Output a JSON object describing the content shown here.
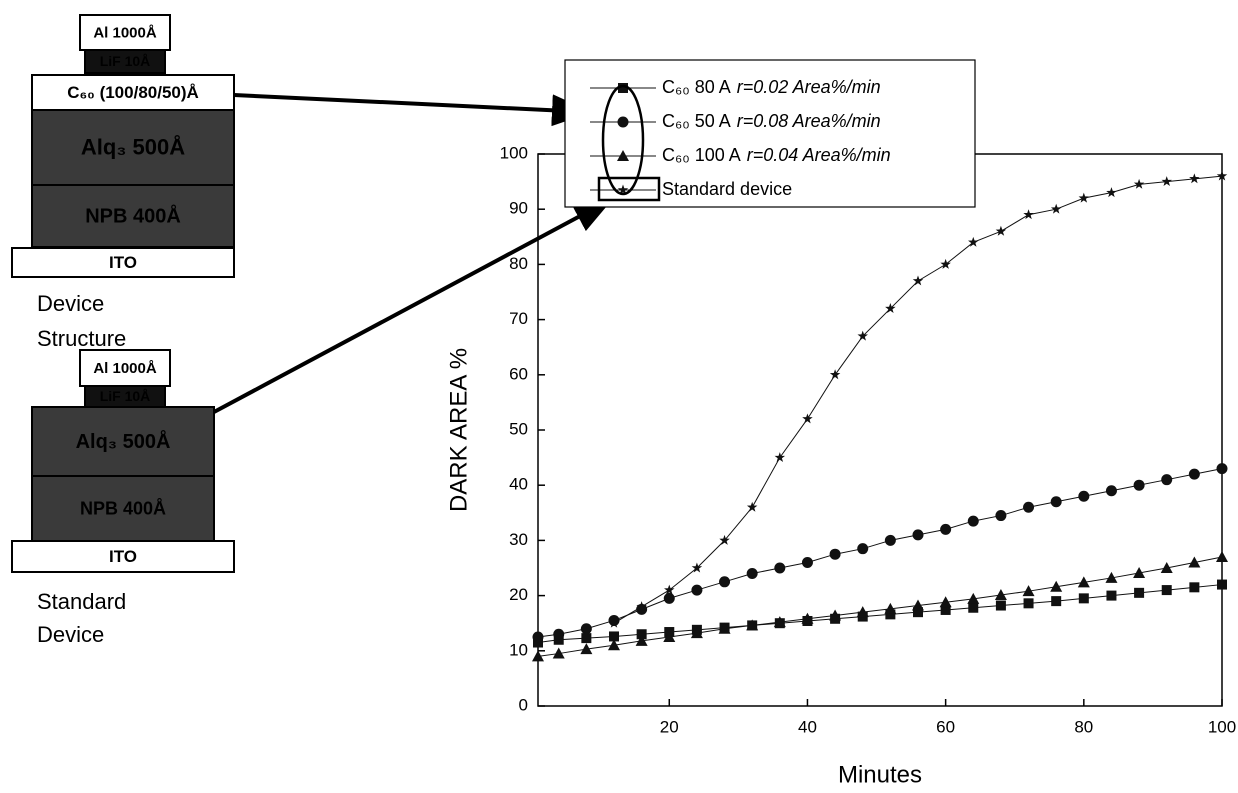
{
  "chart_data": {
    "type": "line",
    "x_label": "Minutes",
    "y_label": "DARK AREA %",
    "x": [
      1,
      4,
      8,
      12,
      16,
      20,
      24,
      28,
      32,
      36,
      40,
      44,
      48,
      52,
      56,
      60,
      64,
      68,
      72,
      76,
      80,
      84,
      88,
      92,
      96,
      100
    ],
    "series": [
      {
        "name": "C₆₀ 80 A",
        "note": "r=0.02 Area%/min",
        "marker": "square",
        "color": "#111111",
        "values": [
          11.5,
          12,
          12.3,
          12.6,
          13,
          13.4,
          13.8,
          14.2,
          14.6,
          15,
          15.4,
          15.8,
          16.2,
          16.6,
          17,
          17.4,
          17.8,
          18.2,
          18.6,
          19,
          19.5,
          20,
          20.5,
          21,
          21.5,
          22
        ]
      },
      {
        "name": "C₆₀ 50 A",
        "note": "r=0.08 Area%/min",
        "marker": "circle",
        "color": "#111111",
        "values": [
          12.5,
          13,
          14,
          15.5,
          17.5,
          19.5,
          21,
          22.5,
          24,
          25,
          26,
          27.5,
          28.5,
          30,
          31,
          32,
          33.5,
          34.5,
          36,
          37,
          38,
          39,
          40,
          41,
          42,
          43
        ]
      },
      {
        "name": "C₆₀ 100 A",
        "note": "r=0.04 Area%/min",
        "marker": "triangle",
        "color": "#111111",
        "values": [
          9,
          9.5,
          10.3,
          11,
          11.8,
          12.5,
          13.2,
          14,
          14.6,
          15.2,
          15.8,
          16.4,
          17,
          17.6,
          18.2,
          18.8,
          19.4,
          20.1,
          20.8,
          21.6,
          22.4,
          23.2,
          24.1,
          25,
          26,
          27
        ]
      },
      {
        "name": "Standard device",
        "marker": "star",
        "color": "#111111",
        "values": [
          null,
          null,
          null,
          15,
          18,
          21,
          25,
          30,
          36,
          45,
          52,
          60,
          67,
          72,
          77,
          80,
          84,
          86,
          89,
          90,
          92,
          93,
          94.5,
          95,
          95.5,
          96
        ]
      }
    ],
    "xlim": [
      1,
      100
    ],
    "xticks": [
      20,
      40,
      60,
      80,
      100
    ],
    "ylim": [
      0,
      100
    ],
    "yticks": [
      0,
      10,
      20,
      30,
      40,
      50,
      60,
      70,
      80,
      90,
      100
    ]
  },
  "diagrams": [
    {
      "layers": [
        "Al 1000Å",
        "LiF 10Å",
        "C₆₀ (100/80/50)Å",
        "Alq₃ 500Å",
        "NPB 400Å",
        "ITO"
      ],
      "caption": [
        "Device",
        "Structure"
      ]
    },
    {
      "layers": [
        "Al 1000Å",
        "LiF 10Å",
        "Alq₃ 500Å",
        "NPB 400Å",
        "ITO"
      ],
      "caption": [
        "Standard",
        "Device"
      ]
    }
  ]
}
